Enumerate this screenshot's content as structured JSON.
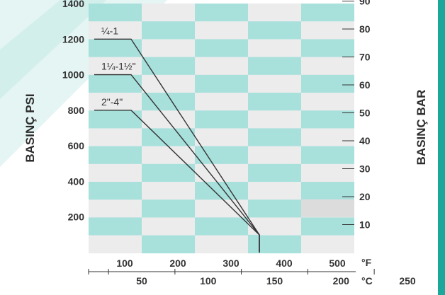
{
  "colors": {
    "teal": "#a8e0dc",
    "light": "#ececec",
    "line": "#333333",
    "accent": "#1aa79c"
  },
  "chart_data": {
    "type": "line",
    "title": "",
    "ylabel_left": "BASINÇ PSI",
    "ylabel_right": "BASINÇ BAR",
    "unit_f": "°F",
    "unit_c": "°C",
    "ylim_psi": [
      0,
      1400
    ],
    "psi_ticks": [
      200,
      400,
      600,
      800,
      1000,
      1200,
      1400
    ],
    "bar_ticks": [
      10,
      20,
      30,
      40,
      50,
      60,
      70,
      80,
      90
    ],
    "f_ticks": [
      100,
      200,
      300,
      400,
      500
    ],
    "c_ticks": [
      50,
      100,
      150,
      200,
      250
    ],
    "series": [
      {
        "name": "¼-1",
        "points": [
          [
            0,
            1200
          ],
          [
            100,
            1200
          ],
          [
            366,
            200
          ],
          [
            366,
            0
          ]
        ]
      },
      {
        "name": "1¼-1½\"",
        "points": [
          [
            0,
            1000
          ],
          [
            100,
            1000
          ],
          [
            366,
            200
          ],
          [
            366,
            0
          ]
        ]
      },
      {
        "name": "2\"-4\"",
        "points": [
          [
            0,
            800
          ],
          [
            100,
            800
          ],
          [
            366,
            200
          ],
          [
            366,
            0
          ]
        ]
      }
    ]
  }
}
